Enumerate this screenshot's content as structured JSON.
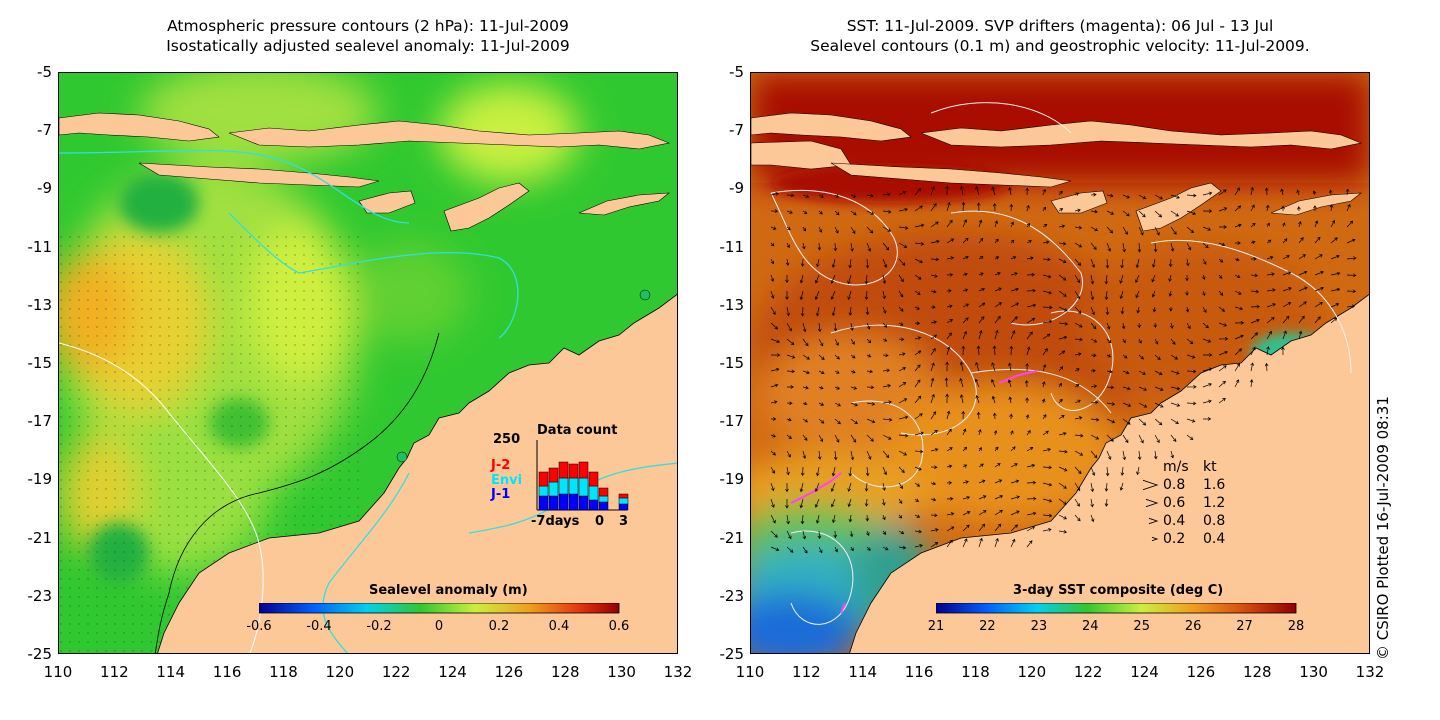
{
  "left_panel": {
    "title_line1": "Atmospheric pressure contours (2 hPa): 11-Jul-2009",
    "title_line2": "Isostatically adjusted sealevel anomaly: 11-Jul-2009",
    "colorbar": {
      "title": "Sealevel anomaly (m)",
      "ticks": [
        "-0.6",
        "-0.4",
        "-0.2",
        "0",
        "0.2",
        "0.4",
        "0.6"
      ]
    },
    "data_count_inset": {
      "title": "Data count",
      "ymax": "250",
      "series": [
        "J-2",
        "Envi",
        "J-1"
      ],
      "series_colors": [
        "#ff0000",
        "#00e5ff",
        "#0000ff"
      ],
      "x_labels": [
        "-7days",
        "0",
        "3"
      ]
    }
  },
  "right_panel": {
    "title_line1": "SST: 11-Jul-2009. SVP drifters (magenta): 06 Jul - 13 Jul",
    "title_line2": "Sealevel contours (0.1 m) and geostrophic velocity: 11-Jul-2009.",
    "colorbar": {
      "title": "3-day SST composite (deg C)",
      "ticks": [
        "21",
        "22",
        "23",
        "24",
        "25",
        "26",
        "27",
        "28"
      ]
    },
    "velocity_legend": {
      "header_ms": "m/s",
      "header_kt": "kt",
      "rows": [
        {
          "ms": "0.8",
          "kt": "1.6"
        },
        {
          "ms": "0.6",
          "kt": "1.2"
        },
        {
          "ms": "0.4",
          "kt": "0.8"
        },
        {
          "ms": "0.2",
          "kt": "0.4"
        }
      ]
    }
  },
  "axes": {
    "y_ticks": [
      "-5",
      "-7",
      "-9",
      "-11",
      "-13",
      "-15",
      "-17",
      "-19",
      "-21",
      "-23",
      "-25"
    ],
    "x_ticks": [
      "110",
      "112",
      "114",
      "116",
      "118",
      "120",
      "122",
      "124",
      "126",
      "128",
      "130",
      "132"
    ]
  },
  "credit": "© CSIRO Plotted 16-Jul-2009 08:31",
  "colors": {
    "land": "#fcc898",
    "sla_green": "#2fc82f",
    "sla_yellow": "#ccf040",
    "sla_orange": "#f2b020",
    "sst_darkred": "#a80c00",
    "sst_orange": "#d86a10",
    "sst_blue": "#1a6cd8"
  }
}
